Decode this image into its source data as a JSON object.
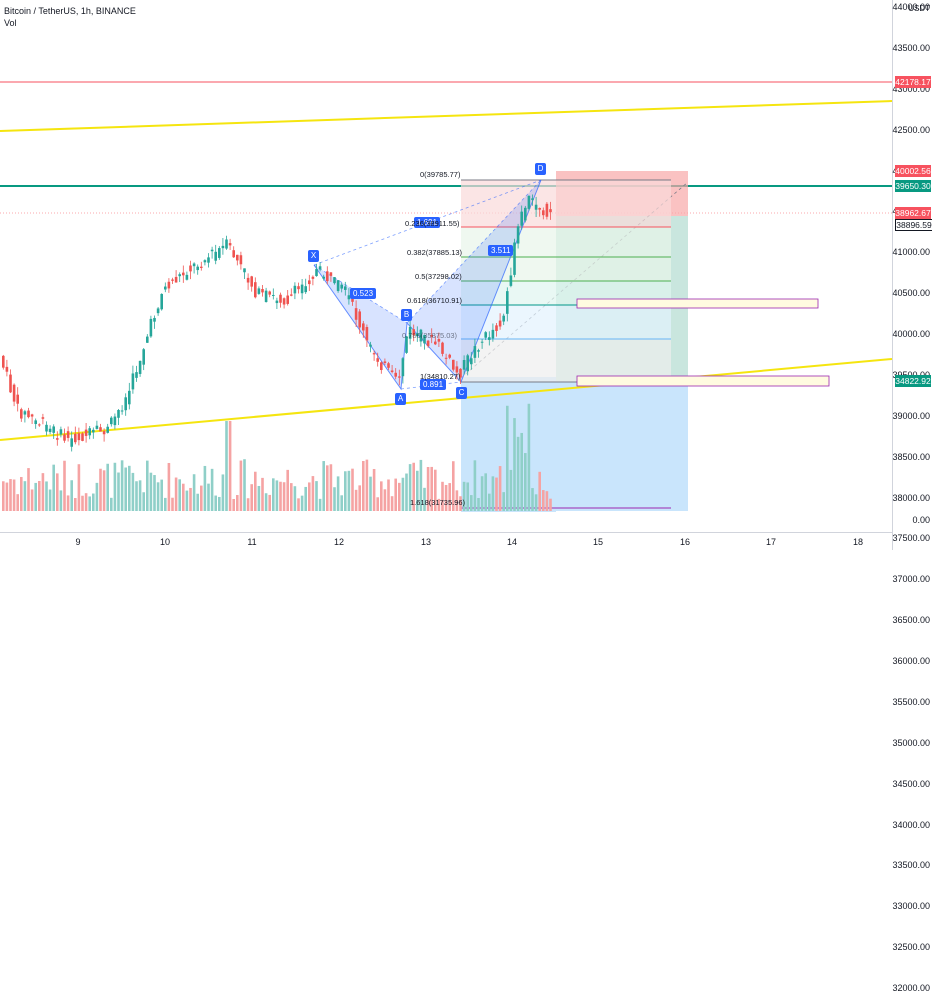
{
  "header": {
    "title": "Bitcoin / TetherUS, 1h, BINANCE",
    "volume_label": "Vol"
  },
  "currency": "USDT",
  "price_axis": {
    "ticks": [
      "44000.00",
      "43500.00",
      "43000.00",
      "42500.00",
      "42000.00",
      "41500.00",
      "41000.00",
      "40500.00",
      "40000.00",
      "39500.00",
      "39000.00",
      "38500.00",
      "38000.00",
      "37500.00",
      "37000.00",
      "36500.00",
      "36000.00",
      "35500.00",
      "35000.00",
      "34500.00",
      "34000.00",
      "33500.00",
      "33000.00",
      "32500.00",
      "32000.00",
      "0.00"
    ],
    "tags": [
      {
        "label": "42178.17",
        "color": "#f7525f",
        "type": "line-price"
      },
      {
        "label": "40002.56",
        "color": "#f7525f",
        "type": "stop"
      },
      {
        "label": "39650.30",
        "color": "#089981",
        "type": "level"
      },
      {
        "label": "38962.67",
        "color": "#f7525f",
        "type": "last"
      },
      {
        "label": "38896.59",
        "color": "#ffffff",
        "type": "entry"
      },
      {
        "label": "34822.92",
        "color": "#089981",
        "type": "target"
      }
    ]
  },
  "time_axis": {
    "ticks": [
      "9",
      "10",
      "11",
      "12",
      "13",
      "14",
      "15",
      "16",
      "17",
      "18"
    ]
  },
  "pattern": {
    "points": [
      "X",
      "A",
      "B",
      "C",
      "D"
    ],
    "ratios": [
      "0.523",
      "0.891",
      "3.511",
      "1.691"
    ]
  },
  "fib": {
    "levels": [
      "0(39785.77)",
      "0.236(38911.55)",
      "0.382(37885.13)",
      "0.5(37298.02)",
      "0.618(36710.91)",
      "0.786(35875.03)",
      "1(34810.27)",
      "1.618(31735.96)"
    ]
  },
  "colors": {
    "up": "#26a69a",
    "down": "#ef5350",
    "vol_up": "#8fcfc8",
    "vol_down": "#f5a3a3",
    "yellow_line": "#f5e50f",
    "green_line": "#089981",
    "red_line": "#f7525f",
    "pattern_fill": "#2962ff",
    "fib_fill": "#9c9cff"
  }
}
